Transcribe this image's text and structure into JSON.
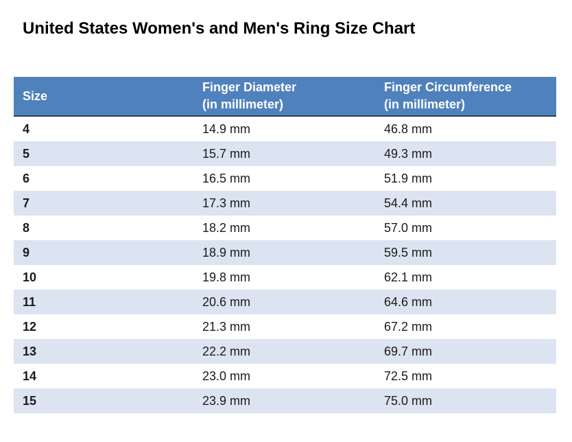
{
  "title": "United States Women's and Men's Ring Size Chart",
  "table": {
    "columns": [
      {
        "label": "Size",
        "sublabel": ""
      },
      {
        "label": "Finger Diameter",
        "sublabel": "(in millimeter)"
      },
      {
        "label": "Finger Circumference",
        "sublabel": "(in millimeter)"
      }
    ],
    "unit_suffix": " mm"
  },
  "colors": {
    "header_bg": "#4F81BD",
    "header_text": "#FFFFFF",
    "banded_row_bg": "#DBE4F0",
    "plain_row_bg": "#FFFFFF",
    "body_text": "#1A1A1A",
    "header_underline": "#2F3E50"
  },
  "chart_data": {
    "type": "table",
    "title": "United States Women's and Men's Ring Size Chart",
    "columns": [
      "Size",
      "Finger Diameter (in millimeter)",
      "Finger Circumference (in millimeter)"
    ],
    "sizes": [
      4,
      5,
      6,
      7,
      8,
      9,
      10,
      11,
      12,
      13,
      14,
      15
    ],
    "finger_diameter_mm": [
      14.9,
      15.7,
      16.5,
      17.3,
      18.2,
      18.9,
      19.8,
      20.6,
      21.3,
      22.2,
      23.0,
      23.9
    ],
    "finger_circumference_mm": [
      46.8,
      49.3,
      51.9,
      54.4,
      57.0,
      59.5,
      62.1,
      64.6,
      67.2,
      69.7,
      72.5,
      75.0
    ],
    "layout": {
      "banded_rows": true,
      "grid": false,
      "header_fill": "#4F81BD",
      "band_fill": "#DBE4F0"
    }
  }
}
